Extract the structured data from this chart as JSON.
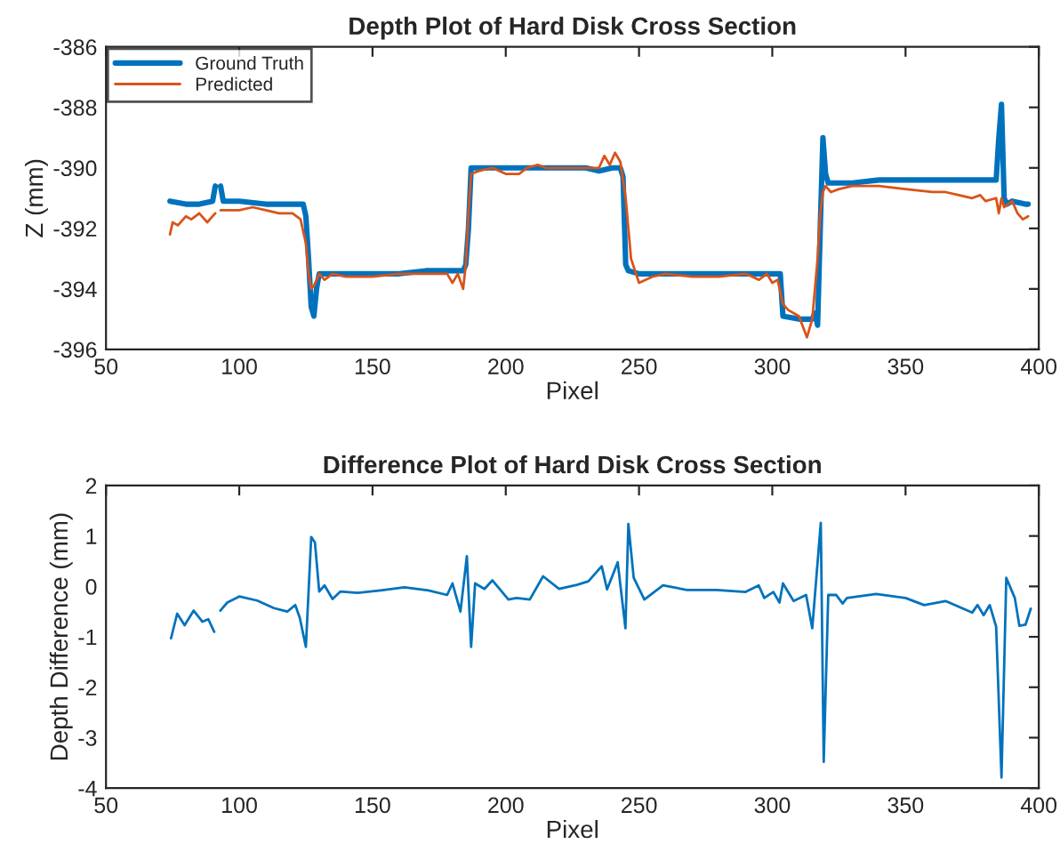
{
  "chart_data": [
    {
      "type": "line",
      "title": "Depth Plot of Hard Disk Cross Section",
      "xlabel": "Pixel",
      "ylabel": "Z (mm)",
      "xlim": [
        50,
        400
      ],
      "xticks": [
        50,
        100,
        150,
        200,
        250,
        300,
        350,
        400
      ],
      "ylim": [
        -396,
        -386
      ],
      "yticks": [
        -396,
        -394,
        -392,
        -390,
        -388,
        -386
      ],
      "legend": "top left",
      "grid": false,
      "series": [
        {
          "name": "Ground Truth",
          "color": "#0072bd",
          "x": [
            74,
            80,
            85,
            90,
            91,
            92,
            93,
            94,
            100,
            110,
            120,
            124,
            125,
            126,
            127,
            128,
            129,
            130,
            140,
            150,
            160,
            170,
            180,
            184,
            185,
            186,
            187,
            190,
            200,
            210,
            220,
            230,
            235,
            240,
            243,
            244,
            245,
            246,
            250,
            260,
            270,
            280,
            290,
            300,
            303,
            304,
            310,
            315,
            316,
            317,
            318,
            319,
            320,
            321,
            330,
            340,
            350,
            360,
            370,
            380,
            384,
            385,
            386,
            387,
            388,
            390,
            395,
            396
          ],
          "values": [
            -391.1,
            -391.2,
            -391.2,
            -391.1,
            -390.6,
            null,
            -390.6,
            -391.1,
            -391.1,
            -391.2,
            -391.2,
            -391.2,
            -391.6,
            -393,
            -394.6,
            -394.9,
            -394,
            -393.5,
            -393.5,
            -393.5,
            -393.5,
            -393.4,
            -393.4,
            -393.4,
            -393.2,
            -392,
            -390,
            -390,
            -390,
            -390,
            -390,
            -390,
            -390.1,
            -390,
            -390,
            -390.3,
            -393.2,
            -393.4,
            -393.5,
            -393.5,
            -393.5,
            -393.5,
            -393.5,
            -393.5,
            -393.5,
            -394.9,
            -395,
            -395,
            -394.8,
            -395.2,
            -392,
            -389,
            -390.2,
            -390.5,
            -390.5,
            -390.4,
            -390.4,
            -390.4,
            -390.4,
            -390.4,
            -390.4,
            -389,
            -387.9,
            -391,
            -391.2,
            -391.1,
            -391.2,
            -391.2
          ]
        },
        {
          "name": "Predicted",
          "color": "#d95319",
          "x": [
            74,
            75,
            77,
            80,
            82,
            85,
            88,
            90,
            91,
            92,
            93,
            100,
            105,
            110,
            115,
            120,
            123,
            125,
            126,
            127,
            128,
            130,
            132,
            135,
            140,
            150,
            160,
            170,
            178,
            180,
            182,
            184,
            185,
            186,
            187,
            190,
            195,
            200,
            205,
            208,
            212,
            215,
            220,
            230,
            235,
            237,
            239,
            241,
            243,
            245,
            247,
            250,
            255,
            260,
            270,
            280,
            290,
            295,
            298,
            300,
            302,
            304,
            306,
            310,
            313,
            315,
            317,
            318,
            319,
            320,
            322,
            325,
            330,
            340,
            350,
            360,
            365,
            370,
            375,
            378,
            380,
            384,
            385,
            386,
            387,
            390,
            392,
            394,
            396
          ],
          "values": [
            -392.2,
            -391.8,
            -391.9,
            -391.6,
            -391.7,
            -391.5,
            -391.8,
            -391.6,
            -391.5,
            null,
            -391.4,
            -391.4,
            -391.3,
            -391.4,
            -391.5,
            -391.5,
            -391.7,
            -392.5,
            -393.5,
            -394,
            -393.9,
            -393.5,
            -393.7,
            -393.5,
            -393.6,
            -393.6,
            -393.5,
            -393.5,
            -393.5,
            -393.8,
            -393.5,
            -394,
            -393.2,
            -391.5,
            -390.2,
            -390.1,
            -390,
            -390.2,
            -390.2,
            -390,
            -389.9,
            -390,
            -390,
            -390,
            -390,
            -389.6,
            -389.9,
            -389.5,
            -389.8,
            -391,
            -393,
            -393.8,
            -393.6,
            -393.5,
            -393.6,
            -393.6,
            -393.5,
            -393.7,
            -393.5,
            -393.8,
            -393.7,
            -394.5,
            -394.7,
            -394.9,
            -395.6,
            -395,
            -393,
            -391.5,
            -390.8,
            -390.6,
            -390.8,
            -390.7,
            -390.6,
            -390.6,
            -390.7,
            -390.8,
            -390.8,
            -390.9,
            -391,
            -390.9,
            -391.1,
            -391,
            -391.5,
            -391,
            -391.3,
            -391.1,
            -391.5,
            -391.7,
            -391.6
          ]
        }
      ]
    },
    {
      "type": "line",
      "title": "Difference Plot of Hard Disk Cross Section",
      "xlabel": "Pixel",
      "ylabel": "Depth Difference (mm)",
      "xlim": [
        50,
        400
      ],
      "xticks": [
        50,
        100,
        150,
        200,
        250,
        300,
        350,
        400
      ],
      "ylim": [
        -4,
        2
      ],
      "yticks": [
        -4,
        -3,
        -2,
        -1,
        0,
        1,
        2
      ],
      "grid": false,
      "series": [
        {
          "color": "#0072bd",
          "x": [
            74.4,
            76.7,
            79.5,
            82.9,
            86.2,
            88.4,
            90.6,
            92,
            92.9,
            95.5,
            100,
            106.7,
            113,
            118,
            121,
            122.7,
            125,
            127,
            128.4,
            130,
            132,
            135,
            138,
            144.4,
            153,
            162,
            171,
            178,
            180,
            183,
            185.4,
            187,
            188.5,
            192,
            195,
            201,
            204,
            209,
            214,
            220,
            226.7,
            231,
            236,
            238,
            242,
            244.9,
            246,
            248,
            252,
            259,
            268,
            279,
            290,
            294.9,
            297,
            300.4,
            302.7,
            304,
            308,
            312.7,
            315,
            318.2,
            319.3,
            321,
            324,
            326.4,
            328,
            339,
            350,
            357,
            365,
            375,
            377,
            379.3,
            381.6,
            384,
            386,
            387.8,
            391,
            392.7,
            395,
            397
          ],
          "values": [
            -1.03,
            -0.54,
            -0.77,
            -0.48,
            -0.7,
            -0.65,
            -0.9,
            null,
            -0.48,
            -0.32,
            -0.2,
            -0.28,
            -0.43,
            -0.5,
            -0.37,
            -0.62,
            -1.2,
            0.98,
            0.87,
            -0.1,
            0.02,
            -0.25,
            -0.1,
            -0.13,
            -0.08,
            -0.02,
            -0.08,
            -0.17,
            0.06,
            -0.5,
            0.6,
            -1.2,
            0.06,
            -0.05,
            0.12,
            -0.26,
            -0.23,
            -0.26,
            0.2,
            -0.05,
            0.03,
            0.1,
            0.4,
            -0.06,
            0.48,
            -0.83,
            1.24,
            0.17,
            -0.26,
            0.02,
            -0.07,
            -0.07,
            -0.11,
            0.02,
            -0.23,
            -0.11,
            -0.32,
            0.06,
            -0.29,
            -0.17,
            -0.83,
            1.26,
            -3.48,
            -0.17,
            -0.17,
            -0.34,
            -0.23,
            -0.15,
            -0.23,
            -0.37,
            -0.29,
            -0.52,
            -0.37,
            -0.57,
            -0.37,
            -0.8,
            -3.79,
            0.17,
            -0.23,
            -0.78,
            -0.76,
            -0.44
          ]
        }
      ]
    }
  ]
}
